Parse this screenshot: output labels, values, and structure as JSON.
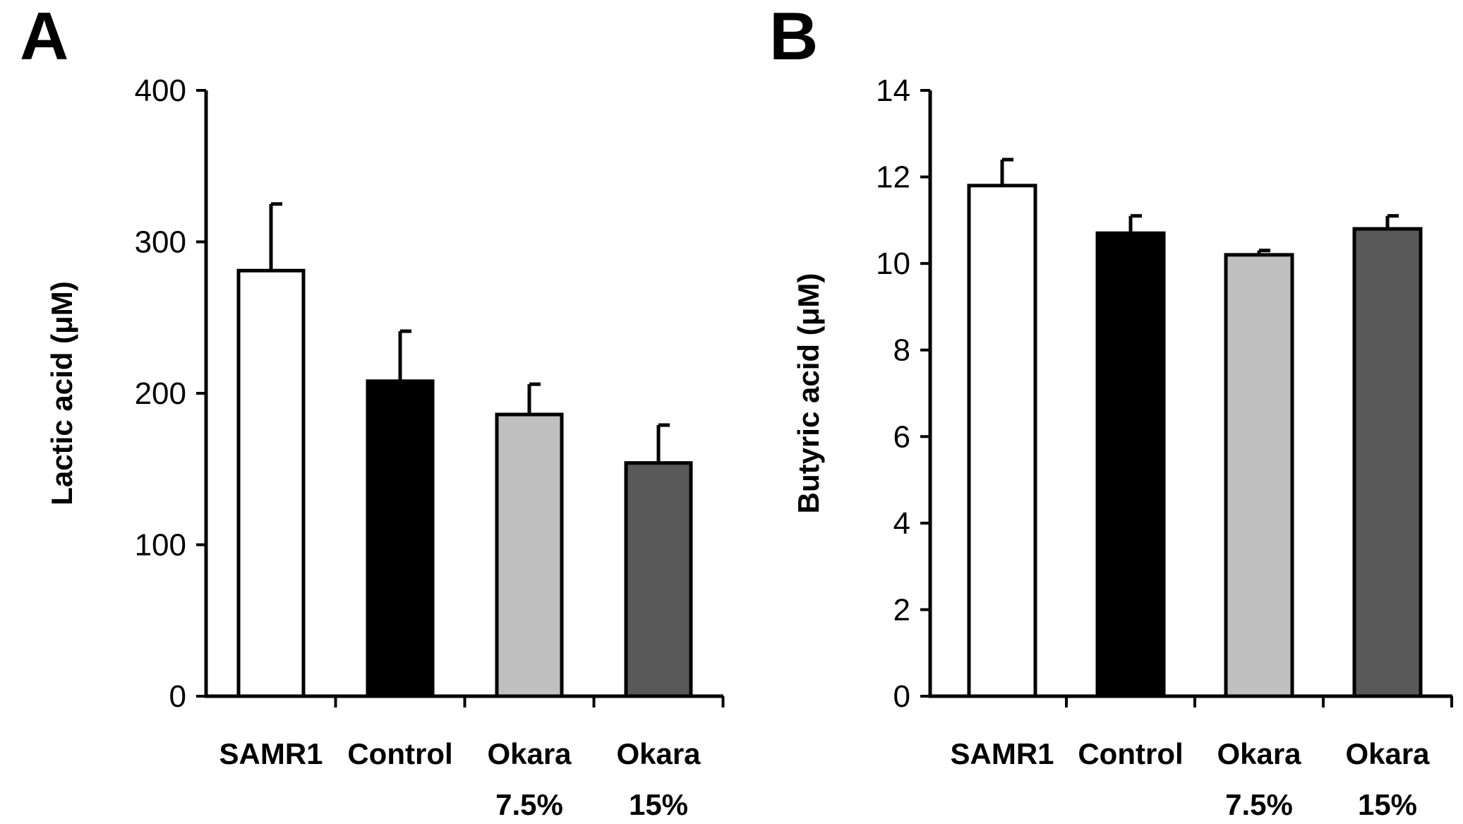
{
  "chart_data": [
    {
      "type": "bar",
      "panel": "A",
      "categories": [
        [
          "SAMR1"
        ],
        [
          "Control"
        ],
        [
          "Okara",
          "7.5%"
        ],
        [
          "Okara",
          "15%"
        ]
      ],
      "values": [
        281,
        208,
        186,
        154
      ],
      "errors": [
        44,
        33,
        20,
        25
      ],
      "colors": [
        "#ffffff",
        "#000000",
        "#c0c0c0",
        "#595959"
      ],
      "ylabel": "Lactic acid (μM)",
      "xlabel": "",
      "ylim": [
        0,
        400
      ],
      "yticks": [
        "0",
        "100",
        "200",
        "300",
        "400"
      ]
    },
    {
      "type": "bar",
      "panel": "B",
      "categories": [
        [
          "SAMR1"
        ],
        [
          "Control"
        ],
        [
          "Okara",
          "7.5%"
        ],
        [
          "Okara",
          "15%"
        ]
      ],
      "values": [
        11.8,
        10.7,
        10.2,
        10.8
      ],
      "errors": [
        0.6,
        0.4,
        0.1,
        0.3
      ],
      "colors": [
        "#ffffff",
        "#000000",
        "#c0c0c0",
        "#595959"
      ],
      "ylabel": "Butyric acid (μM)",
      "xlabel": "",
      "ylim": [
        0,
        14
      ],
      "yticks": [
        "0",
        "2",
        "4",
        "6",
        "8",
        "10",
        "12",
        "14"
      ]
    }
  ]
}
